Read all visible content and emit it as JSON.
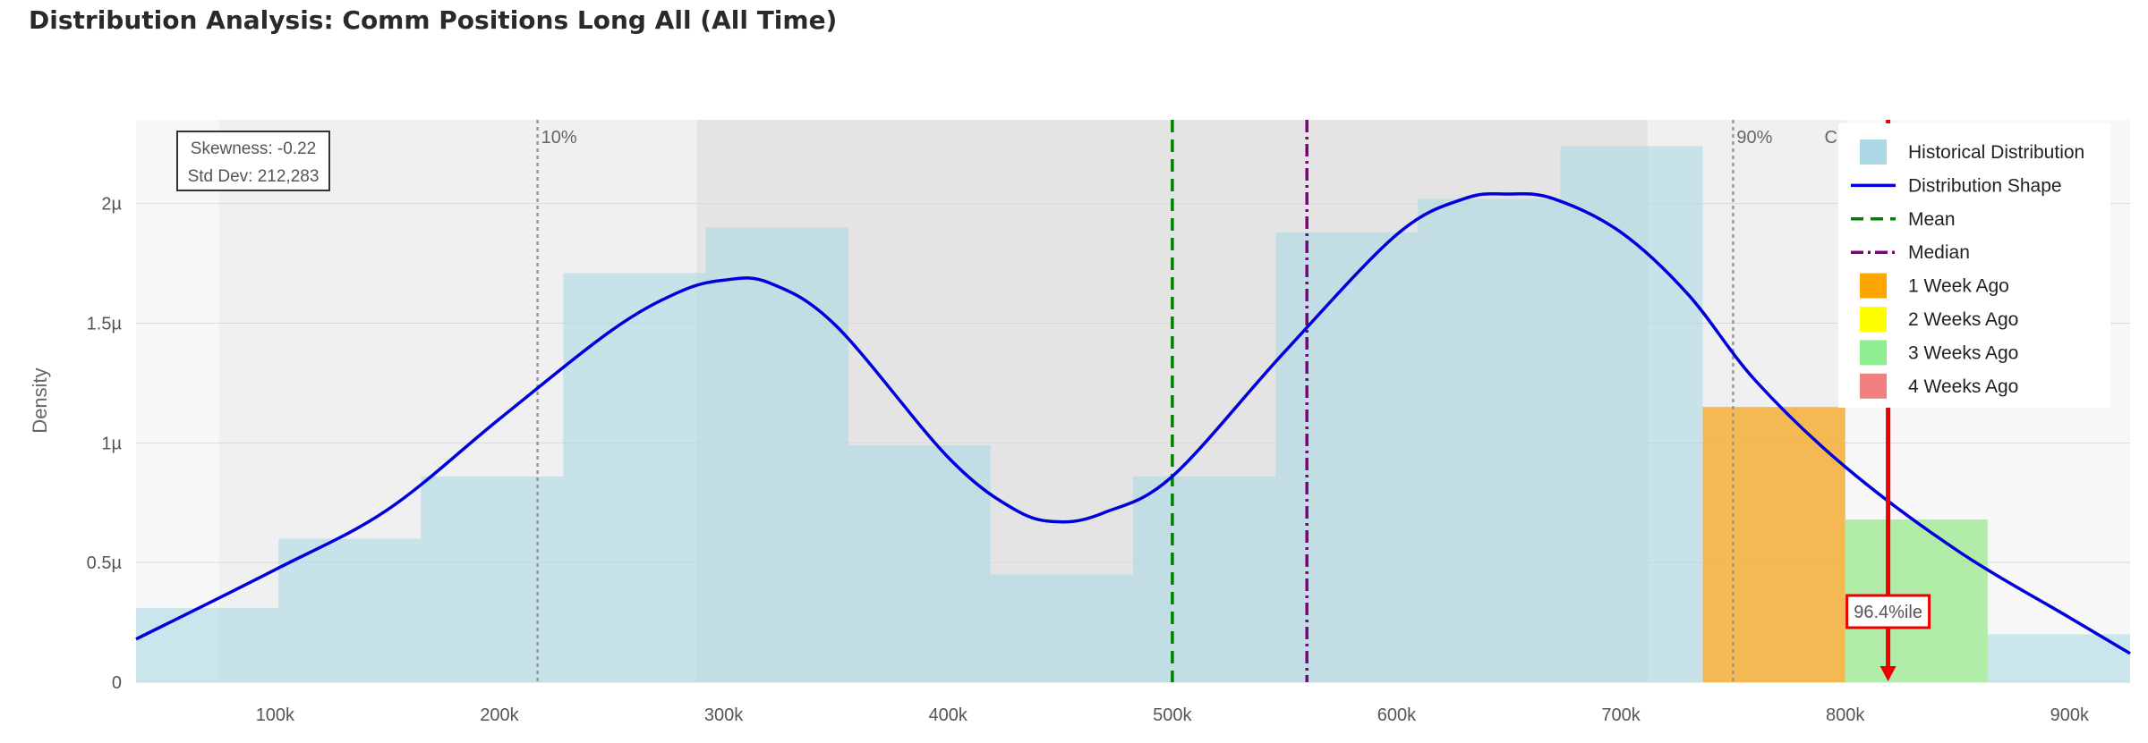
{
  "chart_data": {
    "type": "bar",
    "title": "Distribution Analysis: Comm Positions Long All (All Time)",
    "xlabel": "",
    "ylabel": "Density",
    "xlim": [
      38000,
      927000
    ],
    "ylim": [
      0,
      2.35
    ],
    "x_ticks": [
      100000,
      200000,
      300000,
      400000,
      500000,
      600000,
      700000,
      800000,
      900000
    ],
    "x_tick_labels": [
      "100k",
      "200k",
      "300k",
      "400k",
      "500k",
      "600k",
      "700k",
      "800k",
      "900k"
    ],
    "y_ticks": [
      0,
      0.5,
      1,
      1.5,
      2
    ],
    "y_tick_labels": [
      "0",
      "0.5µ",
      "1µ",
      "1.5µ",
      "2µ"
    ],
    "y_unit": "µ",
    "grid": true,
    "legend_position": "top-right",
    "bin_width": 63500,
    "histogram": {
      "name": "Historical Distribution",
      "color": "#add8e6",
      "bins": [
        {
          "x0": 38000,
          "x1": 101500,
          "density": 0.31
        },
        {
          "x0": 101500,
          "x1": 165000,
          "density": 0.6
        },
        {
          "x0": 165000,
          "x1": 228500,
          "density": 0.86
        },
        {
          "x0": 228500,
          "x1": 292000,
          "density": 1.71
        },
        {
          "x0": 292000,
          "x1": 355500,
          "density": 1.9
        },
        {
          "x0": 355500,
          "x1": 419000,
          "density": 0.99
        },
        {
          "x0": 419000,
          "x1": 482500,
          "density": 0.45
        },
        {
          "x0": 482500,
          "x1": 546000,
          "density": 0.86
        },
        {
          "x0": 546000,
          "x1": 609500,
          "density": 1.88
        },
        {
          "x0": 609500,
          "x1": 673000,
          "density": 2.02
        },
        {
          "x0": 673000,
          "x1": 736500,
          "density": 2.24
        },
        {
          "x0": 736500,
          "x1": 800000,
          "density": 1.15,
          "highlight": "1 Week Ago"
        },
        {
          "x0": 800000,
          "x1": 863500,
          "density": 0.68,
          "highlight": "3 Weeks Ago"
        },
        {
          "x0": 863500,
          "x1": 927000,
          "density": 0.2
        }
      ]
    },
    "density_curve": {
      "name": "Distribution Shape",
      "color": "#0000dd",
      "x": [
        38000,
        100000,
        150000,
        200000,
        250000,
        280000,
        300000,
        320000,
        350000,
        400000,
        430000,
        450000,
        470000,
        500000,
        550000,
        600000,
        630000,
        650000,
        670000,
        700000,
        730000,
        760000,
        800000,
        850000,
        900000,
        927000
      ],
      "y": [
        0.18,
        0.47,
        0.72,
        1.1,
        1.47,
        1.63,
        1.68,
        1.67,
        1.49,
        0.94,
        0.72,
        0.67,
        0.71,
        0.86,
        1.38,
        1.87,
        2.02,
        2.04,
        2.02,
        1.88,
        1.62,
        1.26,
        0.9,
        0.55,
        0.27,
        0.12
      ]
    },
    "reference_lines": [
      {
        "name": "10%",
        "x": 217000,
        "color": "#999999",
        "style": "dotted",
        "label": "10%"
      },
      {
        "name": "Mean",
        "x": 500000,
        "color": "#008000",
        "style": "dashed"
      },
      {
        "name": "Median",
        "x": 560000,
        "color": "#800080",
        "style": "dashdot"
      },
      {
        "name": "90%",
        "x": 750000,
        "color": "#999999",
        "style": "dotted",
        "label": "90%"
      }
    ],
    "bands": [
      {
        "x0": 75000,
        "x1": 800000,
        "color": "#f0f0f0"
      },
      {
        "x0": 288000,
        "x1": 712000,
        "color": "#e4e4e4"
      }
    ],
    "current": {
      "label": "Current: 819,102",
      "x": 819102,
      "color": "#ee0000",
      "percentile_label": "96.4%ile"
    },
    "stats_box": {
      "skewness": "Skewness: -0.22",
      "std_dev": "Std Dev: 212,283"
    },
    "legend": [
      {
        "label": "Historical Distribution",
        "kind": "box",
        "color": "#add8e6"
      },
      {
        "label": "Distribution Shape",
        "kind": "line",
        "color": "#0000dd",
        "style": "solid"
      },
      {
        "label": "Mean",
        "kind": "line",
        "color": "#008000",
        "style": "dashed"
      },
      {
        "label": "Median",
        "kind": "line",
        "color": "#800080",
        "style": "dashdot"
      },
      {
        "label": "1 Week Ago",
        "kind": "box",
        "color": "#ffa500"
      },
      {
        "label": "2 Weeks Ago",
        "kind": "box",
        "color": "#ffff00"
      },
      {
        "label": "3 Weeks Ago",
        "kind": "box",
        "color": "#90ee90"
      },
      {
        "label": "4 Weeks Ago",
        "kind": "box",
        "color": "#f08080"
      }
    ],
    "highlight_colors": {
      "1 Week Ago": "#f5b342",
      "2 Weeks Ago": "#ffff00",
      "3 Weeks Ago": "#a8eaa0",
      "4 Weeks Ago": "#f08080"
    }
  }
}
